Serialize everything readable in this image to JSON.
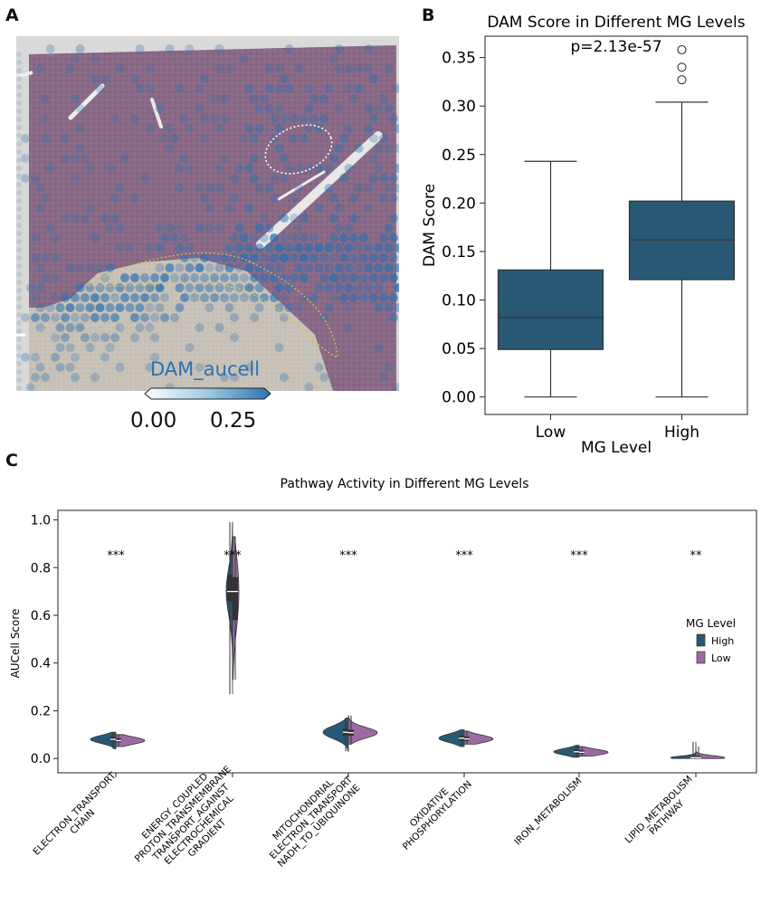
{
  "panels": {
    "a": "A",
    "b": "B",
    "c": "C"
  },
  "panel_a": {
    "overlay_label": "DAM_aucell",
    "colorbar_ticks": [
      "0.00",
      "0.25"
    ],
    "colors": {
      "low": "#ffffff",
      "high": "#2b71b4",
      "tissue": "#8c6a86"
    }
  },
  "chart_data": [
    {
      "type": "box",
      "title": "DAM Score in Different MG Levels",
      "xlabel": "MG Level",
      "ylabel": "DAM Score",
      "annotation": "p=2.13e-57",
      "categories": [
        "Low",
        "High"
      ],
      "ylim": [
        -0.018,
        0.372
      ],
      "yticks": [
        0.0,
        0.05,
        0.1,
        0.15,
        0.2,
        0.25,
        0.3,
        0.35
      ],
      "ytick_labels": [
        "0.00",
        "0.05",
        "0.10",
        "0.15",
        "0.20",
        "0.25",
        "0.30",
        "0.35"
      ],
      "grid": false,
      "boxes": [
        {
          "category": "Low",
          "min": 0.0,
          "q1": 0.049,
          "median": 0.082,
          "q3": 0.131,
          "max": 0.243,
          "outliers": []
        },
        {
          "category": "High",
          "min": 0.0,
          "q1": 0.121,
          "median": 0.162,
          "q3": 0.202,
          "max": 0.304,
          "outliers": [
            0.327,
            0.34,
            0.358
          ]
        }
      ],
      "color": "#285874"
    },
    {
      "type": "violin",
      "title": "Pathway Activity in Different MG Levels",
      "ylabel": "AUCell Score",
      "ylim": [
        -0.06,
        1.04
      ],
      "yticks": [
        0.0,
        0.2,
        0.4,
        0.6,
        0.8,
        1.0
      ],
      "ytick_labels": [
        "0.0",
        "0.2",
        "0.4",
        "0.6",
        "0.8",
        "1.0"
      ],
      "legend": {
        "title": "MG Level",
        "placement": "right",
        "entries": [
          "High",
          "Low"
        ]
      },
      "series_colors": {
        "High": "#285874",
        "Low": "#9c6aa3"
      },
      "categories": [
        {
          "label": [
            "ELECTRON_TRANSPORT",
            "CHAIN"
          ],
          "sig": "***",
          "high": {
            "median": 0.08,
            "q1": 0.072,
            "q3": 0.09,
            "min": 0.04,
            "max": 0.11
          },
          "low": {
            "median": 0.075,
            "q1": 0.068,
            "q3": 0.085,
            "min": 0.05,
            "max": 0.1
          }
        },
        {
          "label": [
            "ENERGY_COUPLED",
            "PROTON_TRANSMEMBRANE",
            "TRANSPORT_AGAINST",
            "ELECTROCHEMICAL",
            "GRADIENT"
          ],
          "sig": "***",
          "high": {
            "median": 0.7,
            "q1": 0.66,
            "q3": 0.77,
            "min": 0.27,
            "max": 0.99
          },
          "low": {
            "median": 0.7,
            "q1": 0.58,
            "q3": 0.76,
            "min": 0.33,
            "max": 0.93
          }
        },
        {
          "label": [
            "MITOCHONDRIAL",
            "ELECTRON_TRANSPORT",
            "NADH_TO_UBIQUINONE"
          ],
          "sig": "***",
          "high": {
            "median": 0.11,
            "q1": 0.095,
            "q3": 0.125,
            "min": 0.03,
            "max": 0.17
          },
          "low": {
            "median": 0.108,
            "q1": 0.095,
            "q3": 0.12,
            "min": 0.06,
            "max": 0.18
          }
        },
        {
          "label": [
            "OXIDATIVE",
            "PHOSPHORYLATION"
          ],
          "sig": "***",
          "high": {
            "median": 0.085,
            "q1": 0.075,
            "q3": 0.095,
            "min": 0.05,
            "max": 0.12
          },
          "low": {
            "median": 0.082,
            "q1": 0.074,
            "q3": 0.092,
            "min": 0.06,
            "max": 0.115
          }
        },
        {
          "label": [
            "IRON_METABOLISM"
          ],
          "sig": "***",
          "high": {
            "median": 0.028,
            "q1": 0.02,
            "q3": 0.035,
            "min": 0.005,
            "max": 0.055
          },
          "low": {
            "median": 0.026,
            "q1": 0.02,
            "q3": 0.034,
            "min": 0.01,
            "max": 0.05
          }
        },
        {
          "label": [
            "LIPID_METABOLISM",
            "PATHWAY"
          ],
          "sig": "**",
          "high": {
            "median": 0.003,
            "q1": 0.0,
            "q3": 0.008,
            "min": 0.0,
            "max": 0.07
          },
          "low": {
            "median": 0.003,
            "q1": 0.0,
            "q3": 0.01,
            "min": 0.0,
            "max": 0.05
          }
        }
      ]
    }
  ]
}
